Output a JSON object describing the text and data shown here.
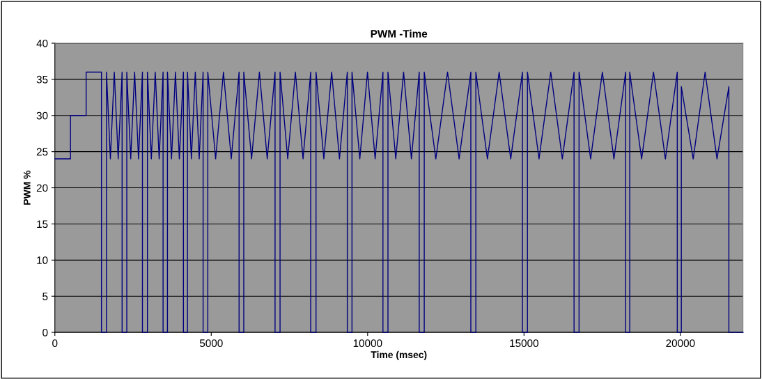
{
  "chart_data": {
    "type": "line",
    "title": "PWM -Time",
    "xlabel": "Time (msec)",
    "ylabel": "PWM %",
    "xlim": [
      0,
      22000
    ],
    "xticks": [
      0,
      5000,
      10000,
      15000,
      20000
    ],
    "ylim": [
      0,
      40
    ],
    "yticks": [
      0,
      5,
      10,
      15,
      20,
      25,
      30,
      35,
      40
    ],
    "grid": "y",
    "legend": false,
    "marker": "none",
    "line_style": "solid",
    "series": [
      {
        "color": "#000080",
        "x": [
          0,
          500,
          500,
          1000,
          1000,
          1490,
          1490,
          1650,
          1650,
          1775,
          1900,
          2025,
          2150,
          2150,
          2300,
          2300,
          2425,
          2550,
          2675,
          2800,
          2800,
          2960,
          2960,
          3085,
          3210,
          3335,
          3460,
          3460,
          3600,
          3600,
          3730,
          3855,
          3980,
          4110,
          4110,
          4240,
          4240,
          4365,
          4490,
          4615,
          4740,
          4740,
          4890,
          4890,
          5140,
          5390,
          5640,
          5890,
          5890,
          6040,
          6040,
          6290,
          6540,
          6790,
          7040,
          7040,
          7200,
          7200,
          7445,
          7690,
          7935,
          8180,
          8180,
          8350,
          8350,
          8600,
          8850,
          9100,
          9350,
          9350,
          9500,
          9500,
          9750,
          9995,
          10240,
          10490,
          10490,
          10650,
          10650,
          10900,
          11150,
          11400,
          11650,
          11650,
          11810,
          11810,
          12180,
          12555,
          12925,
          13300,
          13300,
          13460,
          13460,
          13830,
          14205,
          14575,
          14950,
          14950,
          15110,
          15110,
          15480,
          15855,
          16225,
          16600,
          16600,
          16760,
          16760,
          17130,
          17505,
          17875,
          18250,
          18250,
          18380,
          18380,
          18760,
          19140,
          19520,
          19900,
          19900,
          20030,
          20030,
          20410,
          20790,
          21170,
          21550,
          21550,
          22000
        ],
        "values": [
          24,
          24,
          30,
          30,
          36,
          36,
          0,
          0,
          36,
          24,
          36,
          24,
          36,
          0,
          0,
          36,
          24,
          36,
          24,
          36,
          0,
          0,
          36,
          24,
          36,
          24,
          36,
          0,
          0,
          36,
          24,
          36,
          24,
          36,
          0,
          0,
          36,
          24,
          36,
          24,
          36,
          0,
          0,
          36,
          24,
          36,
          24,
          36,
          0,
          0,
          36,
          24,
          36,
          24,
          36,
          0,
          0,
          36,
          24,
          36,
          24,
          36,
          0,
          0,
          36,
          24,
          36,
          24,
          36,
          0,
          0,
          36,
          24,
          36,
          24,
          36,
          0,
          0,
          36,
          24,
          36,
          24,
          36,
          0,
          0,
          36,
          24,
          36,
          24,
          36,
          0,
          0,
          36,
          24,
          36,
          24,
          36,
          0,
          0,
          36,
          24,
          36,
          24,
          36,
          0,
          0,
          36,
          24,
          36,
          24,
          36,
          0,
          0,
          36,
          24,
          36,
          24,
          36,
          0,
          0,
          34,
          24,
          36,
          24,
          34,
          0,
          0
        ]
      }
    ]
  }
}
